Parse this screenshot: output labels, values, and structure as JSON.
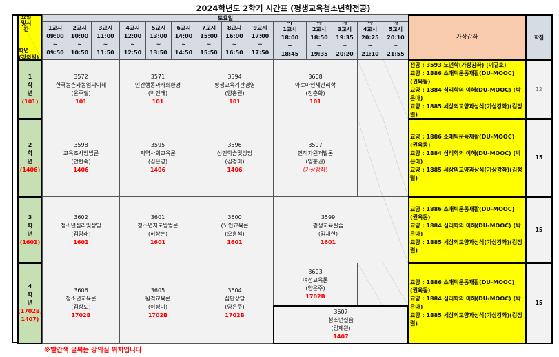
{
  "title": "2024학년도 2학기 시간표 (평생교육청소년학전공)",
  "corner": {
    "top": "요일및시간",
    "bottom_1": "학년",
    "bottom_2": "(강의실)"
  },
  "day_label": "토요일",
  "periods": [
    {
      "label": "1교시",
      "start": "09:00",
      "sep": "~",
      "end": "09:50"
    },
    {
      "label": "2교시",
      "start": "10:00",
      "sep": "~",
      "end": "10:50"
    },
    {
      "label": "3교시",
      "start": "11:00",
      "sep": "~",
      "end": "11:50"
    },
    {
      "label": "4교시",
      "start": "12:00",
      "sep": "~",
      "end": "12:50"
    },
    {
      "label": "5교시",
      "start": "13:00",
      "sep": "~",
      "end": "13:50"
    },
    {
      "label": "6교시",
      "start": "14:00",
      "sep": "~",
      "end": "14:50"
    },
    {
      "label": "7교시",
      "start": "15:00",
      "sep": "~",
      "end": "15:50"
    },
    {
      "label": "8교시",
      "start": "16:00",
      "sep": "~",
      "end": "16:50"
    },
    {
      "label": "9교시",
      "start": "17:00",
      "sep": "~",
      "end": "17:50"
    },
    {
      "prefix": "야",
      "label": "1교시",
      "start": "18:00",
      "sep": "~",
      "end": "18:45"
    },
    {
      "prefix": "야",
      "label": "2교시",
      "start": "18:50",
      "sep": "~",
      "end": "19:35"
    },
    {
      "prefix": "야",
      "label": "3교시",
      "start": "19:35",
      "sep": "~",
      "end": "20:20"
    },
    {
      "prefix": "야",
      "label": "4교시",
      "start": "20:25",
      "sep": "~",
      "end": "21:10"
    },
    {
      "prefix": "야",
      "label": "5교시",
      "start": "20:10",
      "sep": "~",
      "end": "21:55"
    }
  ],
  "virtual_header": "가상강좌",
  "credits_header": "학점",
  "grades": [
    {
      "num": "1",
      "hak": "학",
      "nyeon": "년",
      "room": "(101)",
      "credits": "12",
      "courses": [
        {
          "code": "3572",
          "name": "한국농촌과농업의이해",
          "prof": "(윤주철)",
          "room": "101"
        },
        {
          "code": "3571",
          "name": "인간행동과사회환경",
          "prof": "(박인태)",
          "room": "101"
        },
        {
          "code": "3594",
          "name": "평생교육기관경영",
          "prof": "(양홍권)",
          "room": "101"
        },
        {
          "code": "3608",
          "name": "아로마인체관리학",
          "prof": "(전춘화)",
          "room": "101"
        }
      ],
      "virtual": [
        "전공 : 3593 노년학(가상강좌) (이규호)",
        "교양 : 1886 소매틱운동재활(DU-MOOC) (권육동)",
        "교양 : 1884 심리학의 이해(DU-MOOC) (박은아)",
        "교양 : 1885 세상의교양과상식(가상강좌)(김정렬)"
      ]
    },
    {
      "num": "2",
      "hak": "학",
      "nyeon": "년",
      "room": "(1406)",
      "credits": "15",
      "courses": [
        {
          "code": "3598",
          "name": "교육조사방법론",
          "prof": "(안현숙)",
          "room": "1406"
        },
        {
          "code": "3595",
          "name": "지역사회교육론",
          "prof": "(김은영)",
          "room": "1406"
        },
        {
          "code": "3596",
          "name": "성인학습및상담",
          "prof": "(김경미)",
          "room": "1406"
        },
        {
          "code": "3597",
          "name": "인적자원개발론",
          "prof": "(양홍권)",
          "room": "(가상강좌)"
        }
      ],
      "virtual": [
        "교양 : 1886 소매틱운동재활(DU-MOOC) (권육동)",
        "교양 : 1884 심리학의 이해(DU-MOOC) (박은아)",
        "교양 : 1885 세상의교양과상식(가상강좌)(김정렬)"
      ]
    },
    {
      "num": "3",
      "hak": "학",
      "nyeon": "년",
      "room": "(1601)",
      "credits": "15",
      "courses": [
        {
          "code": "3602",
          "name": "청소년심리및상담",
          "prof": "(김광래)",
          "room": "1601"
        },
        {
          "code": "3601",
          "name": "청소년지도방법론",
          "prof": "(허상훈)",
          "room": "1601"
        },
        {
          "code": "3600",
          "name": "(노인교육론",
          "prof": "(오홍석)",
          "room": "1601"
        },
        {
          "code": "3599",
          "name": "평생교육실습",
          "prof": "(김재현)",
          "room": "1601"
        }
      ],
      "virtual": [
        "교양 : 1886 소매틱운동재활(DU-MOOC) (권육동)",
        "교양 : 1884 심리학의 이해(DU-MOOC) (박은아)",
        "교양 : 1885 세상의교양과상식(가상강좌)(김정렬)"
      ]
    },
    {
      "num": "4",
      "hak": "학",
      "nyeon": "년",
      "room": "(1702B, 1407)",
      "credits": "15",
      "courses": [
        {
          "code": "3606",
          "name": "청소년교육론",
          "prof": "(김상도)",
          "room": "1702B"
        },
        {
          "code": "3605",
          "name": "원격교육론",
          "prof": "(이정미)",
          "room": "1702B"
        },
        {
          "code": "3604",
          "name": "집단상담",
          "prof": "(양은주)",
          "room": "1702B"
        },
        {
          "code": "3603",
          "name": "여성교육론",
          "prof": "(양은주)",
          "room": "1702B"
        },
        {
          "code": "3607",
          "name": "청소년실습",
          "prof": "(김제원)",
          "room": "1407"
        }
      ],
      "virtual": [
        "교양 : 1886 소매틱운동재활(DU-MOOC) (권육동)",
        "교양 : 1884 심리학의 이해(DU-MOOC) (박은아)",
        "교양 : 1885 세상의교양과상식(가상강좌)(김정렬)"
      ]
    }
  ],
  "footnote": "※빨간색 글씨는 강의실 위치입니다",
  "colors": {
    "header": "#d6dce4",
    "virtual_header": "#f8cbad",
    "virtual_cell": "#ffff00",
    "grade_cell": "#c6e0b4",
    "room_text": "#ff0000"
  }
}
